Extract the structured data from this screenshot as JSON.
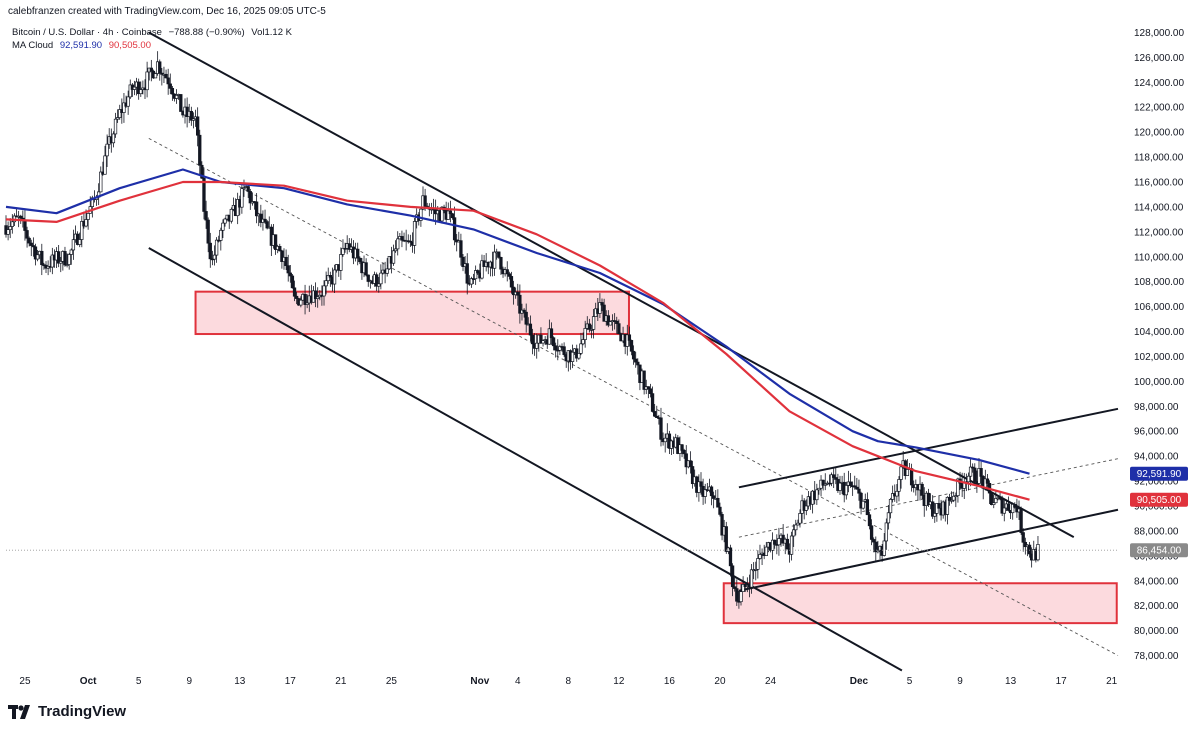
{
  "header": {
    "credit": "calebfranzen created with TradingView.com, Dec 16, 2025 09:05 UTC-5",
    "symbol_line": "Bitcoin / U.S. Dollar · 4h · Coinbase",
    "change": "−788.88 (−0.90%)",
    "volume": "Vol1.12 K",
    "indicator_name": "MA Cloud",
    "ma_fast_value": "92,591.90",
    "ma_slow_value": "90,505.00"
  },
  "branding": {
    "name": "TradingView"
  },
  "colors": {
    "ma_fast": "#1e2fa8",
    "ma_slow": "#e0323c",
    "zone_fill": "#fcd4d8",
    "zone_border": "#e0323c",
    "candle": "#131722",
    "last_price_tag": "#8a8a8a"
  },
  "chart_data": {
    "type": "candlestick",
    "interval": "4h",
    "ylim": [
      77000,
      129000
    ],
    "y_ticks": [
      78000,
      80000,
      82000,
      84000,
      86000,
      88000,
      90000,
      92000,
      94000,
      96000,
      98000,
      100000,
      102000,
      104000,
      106000,
      108000,
      110000,
      112000,
      114000,
      116000,
      118000,
      120000,
      122000,
      124000,
      126000,
      128000
    ],
    "y_tick_labels": [
      "78,000.00",
      "80,000.00",
      "82,000.00",
      "84,000.00",
      "86,000.00",
      "88,000.00",
      "90,000.00",
      "92,000.00",
      "94,000.00",
      "96,000.00",
      "98,000.00",
      "100,000.00",
      "102,000.00",
      "104,000.00",
      "106,000.00",
      "108,000.00",
      "110,000.00",
      "112,000.00",
      "114,000.00",
      "116,000.00",
      "118,000.00",
      "120,000.00",
      "122,000.00",
      "124,000.00",
      "126,000.00",
      "128,000.00"
    ],
    "x_range_days": [
      -6.5,
      81.5
    ],
    "x_ticks": [
      {
        "day": -5,
        "label": "25",
        "bold": false
      },
      {
        "day": 0,
        "label": "Oct",
        "bold": true
      },
      {
        "day": 4,
        "label": "5",
        "bold": false
      },
      {
        "day": 8,
        "label": "9",
        "bold": false
      },
      {
        "day": 12,
        "label": "13",
        "bold": false
      },
      {
        "day": 16,
        "label": "17",
        "bold": false
      },
      {
        "day": 20,
        "label": "21",
        "bold": false
      },
      {
        "day": 24,
        "label": "25",
        "bold": false
      },
      {
        "day": 31,
        "label": "Nov",
        "bold": true
      },
      {
        "day": 34,
        "label": "4",
        "bold": false
      },
      {
        "day": 38,
        "label": "8",
        "bold": false
      },
      {
        "day": 42,
        "label": "12",
        "bold": false
      },
      {
        "day": 46,
        "label": "16",
        "bold": false
      },
      {
        "day": 50,
        "label": "20",
        "bold": false
      },
      {
        "day": 54,
        "label": "24",
        "bold": false
      },
      {
        "day": 61,
        "label": "Dec",
        "bold": true
      },
      {
        "day": 65,
        "label": "5",
        "bold": false
      },
      {
        "day": 69,
        "label": "9",
        "bold": false
      },
      {
        "day": 73,
        "label": "13",
        "bold": false
      },
      {
        "day": 77,
        "label": "17",
        "bold": false
      },
      {
        "day": 81,
        "label": "21",
        "bold": false
      }
    ],
    "price_path": [
      [
        -6.5,
        112500
      ],
      [
        -5.5,
        113000
      ],
      [
        -4.5,
        111000
      ],
      [
        -3.5,
        109300
      ],
      [
        -2.5,
        109800
      ],
      [
        -1.5,
        110000
      ],
      [
        -0.5,
        112500
      ],
      [
        0.5,
        114500
      ],
      [
        1.5,
        118500
      ],
      [
        2.5,
        121500
      ],
      [
        3.5,
        123500
      ],
      [
        4.5,
        124000
      ],
      [
        5.5,
        125500
      ],
      [
        6.5,
        124000
      ],
      [
        7.5,
        121500
      ],
      [
        8.5,
        121000
      ],
      [
        9.2,
        113500
      ],
      [
        9.8,
        109500
      ],
      [
        10.5,
        112000
      ],
      [
        11.5,
        113500
      ],
      [
        12.5,
        115500
      ],
      [
        13.5,
        113000
      ],
      [
        14.5,
        111500
      ],
      [
        15.5,
        110000
      ],
      [
        16.3,
        106500
      ],
      [
        17.5,
        107000
      ],
      [
        18.5,
        107200
      ],
      [
        19.5,
        108500
      ],
      [
        20.5,
        111000
      ],
      [
        21.5,
        109500
      ],
      [
        22.5,
        108000
      ],
      [
        23.5,
        108500
      ],
      [
        24.5,
        111000
      ],
      [
        25.5,
        111000
      ],
      [
        26.5,
        114500
      ],
      [
        27.5,
        113500
      ],
      [
        28.5,
        113500
      ],
      [
        29.5,
        110500
      ],
      [
        30.2,
        107500
      ],
      [
        31.5,
        109500
      ],
      [
        32.5,
        110000
      ],
      [
        33.5,
        107500
      ],
      [
        34.5,
        105000
      ],
      [
        35.5,
        103000
      ],
      [
        36.5,
        103800
      ],
      [
        37.5,
        102500
      ],
      [
        38.5,
        102000
      ],
      [
        39.5,
        104000
      ],
      [
        40.5,
        106000
      ],
      [
        41.5,
        104500
      ],
      [
        42.5,
        103500
      ],
      [
        43.5,
        101000
      ],
      [
        44.5,
        98500
      ],
      [
        45.5,
        95500
      ],
      [
        46.5,
        95000
      ],
      [
        47.5,
        93000
      ],
      [
        48.5,
        91000
      ],
      [
        49.5,
        91000
      ],
      [
        50.5,
        87000
      ],
      [
        51.0,
        84000
      ],
      [
        51.5,
        82500
      ],
      [
        52.5,
        84500
      ],
      [
        53.5,
        86500
      ],
      [
        54.5,
        87500
      ],
      [
        55.5,
        86500
      ],
      [
        56.5,
        90000
      ],
      [
        57.5,
        91000
      ],
      [
        58.5,
        92000
      ],
      [
        59.5,
        91500
      ],
      [
        60.5,
        91500
      ],
      [
        61.5,
        90000
      ],
      [
        62.2,
        86500
      ],
      [
        62.8,
        86000
      ],
      [
        63.5,
        90000
      ],
      [
        64.5,
        93000
      ],
      [
        65.5,
        92000
      ],
      [
        66.5,
        90000
      ],
      [
        67.5,
        89500
      ],
      [
        68.5,
        91000
      ],
      [
        69.5,
        92500
      ],
      [
        70.5,
        92500
      ],
      [
        71.5,
        90500
      ],
      [
        72.5,
        90000
      ],
      [
        73.5,
        90000
      ],
      [
        74.0,
        87500
      ],
      [
        74.7,
        86000
      ],
      [
        75.3,
        86454
      ]
    ],
    "series": [
      {
        "name": "92,591.90",
        "color": "#1e2fa8",
        "points": [
          [
            -6.5,
            114000
          ],
          [
            -2.5,
            113500
          ],
          [
            2.5,
            115500
          ],
          [
            7.5,
            117000
          ],
          [
            10.5,
            116000
          ],
          [
            15.5,
            115500
          ],
          [
            20.5,
            114200
          ],
          [
            25.5,
            113300
          ],
          [
            30.5,
            112200
          ],
          [
            35.5,
            110300
          ],
          [
            40.5,
            108700
          ],
          [
            45.5,
            106200
          ],
          [
            50.5,
            102800
          ],
          [
            55.5,
            99000
          ],
          [
            60.5,
            96000
          ],
          [
            62.5,
            95200
          ],
          [
            65.5,
            94700
          ],
          [
            70.5,
            93700
          ],
          [
            74.5,
            92591.9
          ]
        ]
      },
      {
        "name": "90,505.00",
        "color": "#e0323c",
        "points": [
          [
            -6.5,
            113000
          ],
          [
            -2.5,
            112800
          ],
          [
            2.5,
            114500
          ],
          [
            7.5,
            116000
          ],
          [
            10.5,
            116000
          ],
          [
            15.5,
            115700
          ],
          [
            20.5,
            114500
          ],
          [
            25.5,
            114000
          ],
          [
            30.5,
            113700
          ],
          [
            35.5,
            111800
          ],
          [
            40.5,
            109300
          ],
          [
            45.5,
            106300
          ],
          [
            50.5,
            102200
          ],
          [
            55.5,
            97600
          ],
          [
            60.5,
            94800
          ],
          [
            65.5,
            92800
          ],
          [
            70.5,
            91600
          ],
          [
            74.5,
            90505
          ]
        ]
      }
    ],
    "trendlines": [
      {
        "style": "solid",
        "from": [
          4.8,
          128000
        ],
        "to": [
          78,
          87500
        ]
      },
      {
        "style": "solid",
        "from": [
          4.8,
          110700
        ],
        "to": [
          64.4,
          76800
        ]
      },
      {
        "style": "dashed",
        "from": [
          4.8,
          119500
        ],
        "to": [
          81.5,
          78000
        ]
      },
      {
        "style": "solid",
        "from": [
          51.5,
          91500
        ],
        "to": [
          81.5,
          97800
        ]
      },
      {
        "style": "solid",
        "from": [
          51.5,
          83200
        ],
        "to": [
          81.5,
          89700
        ]
      },
      {
        "style": "dashed",
        "from": [
          51.5,
          87500
        ],
        "to": [
          81.5,
          93800
        ]
      }
    ],
    "zones": [
      {
        "from_day": 8.5,
        "to_day": 42.8,
        "low": 103800,
        "high": 107200
      },
      {
        "from_day": 50.3,
        "to_day": 81.4,
        "low": 80600,
        "high": 83800
      }
    ],
    "last_price": 86454,
    "price_tags": [
      {
        "label": "92,591.90",
        "value": 92591.9,
        "color": "#1e2fa8"
      },
      {
        "label": "90,505.00",
        "value": 90505,
        "color": "#e0323c"
      },
      {
        "label": "86,454.00",
        "value": 86454,
        "color": "#8a8a8a"
      }
    ]
  }
}
